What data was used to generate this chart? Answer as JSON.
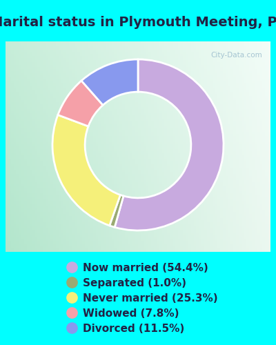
{
  "title": "Marital status in Plymouth Meeting, PA",
  "slices": [
    {
      "label": "Now married (54.4%)",
      "value": 54.4,
      "color": "#C8AADF"
    },
    {
      "label": "Separated (1.0%)",
      "value": 1.0,
      "color": "#9AAA72"
    },
    {
      "label": "Never married (25.3%)",
      "value": 25.3,
      "color": "#F5F07A"
    },
    {
      "label": "Widowed (7.8%)",
      "value": 7.8,
      "color": "#F5A0A8"
    },
    {
      "label": "Divorced (11.5%)",
      "value": 11.5,
      "color": "#8899EE"
    }
  ],
  "bg_color": "#00FFFF",
  "chart_bg_tl": "#C8EED8",
  "chart_bg_br": "#F0FAF5",
  "watermark": "City-Data.com",
  "title_fontsize": 14,
  "legend_fontsize": 11,
  "donut_width": 0.38,
  "startangle": 90
}
